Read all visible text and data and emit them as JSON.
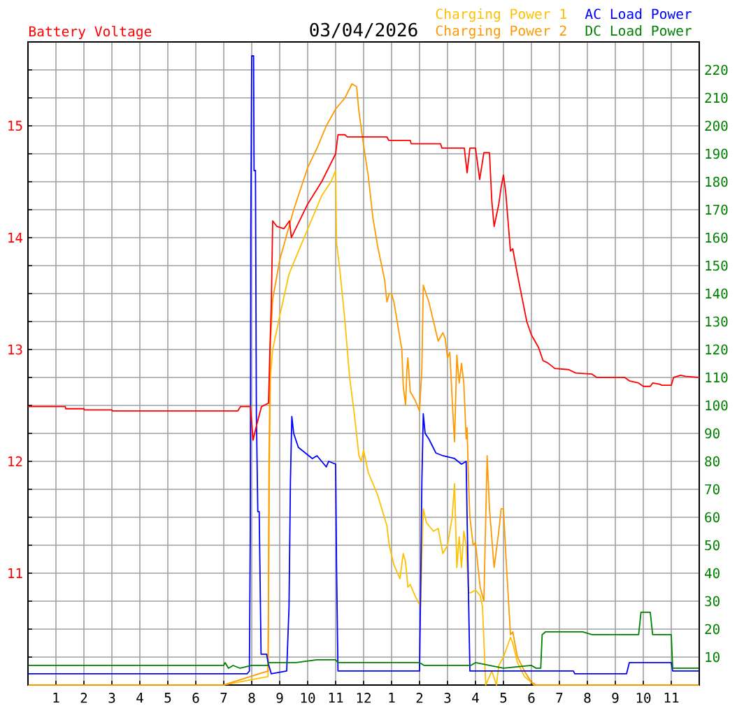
{
  "chart_data": {
    "type": "line",
    "title": "03/04/2026",
    "ylabel": "Battery Voltage",
    "xlim": [
      "2026-03-04T00:00",
      "2026-03-05T00:00"
    ],
    "xticks": [
      {
        "value": "2026-03-04T01:00",
        "label": "1"
      },
      {
        "value": "2026-03-04T02:00",
        "label": "2"
      },
      {
        "value": "2026-03-04T03:00",
        "label": "3"
      },
      {
        "value": "2026-03-04T04:00",
        "label": "4"
      },
      {
        "value": "2026-03-04T05:00",
        "label": "5"
      },
      {
        "value": "2026-03-04T06:00",
        "label": "6"
      },
      {
        "value": "2026-03-04T07:00",
        "label": "7"
      },
      {
        "value": "2026-03-04T08:00",
        "label": "8"
      },
      {
        "value": "2026-03-04T09:00",
        "label": "9"
      },
      {
        "value": "2026-03-04T10:00",
        "label": "10"
      },
      {
        "value": "2026-03-04T11:00",
        "label": "11"
      },
      {
        "value": "2026-03-04T12:00",
        "label": "12"
      },
      {
        "value": "2026-03-04T13:00",
        "label": "1"
      },
      {
        "value": "2026-03-04T14:00",
        "label": "2"
      },
      {
        "value": "2026-03-04T15:00",
        "label": "3"
      },
      {
        "value": "2026-03-04T16:00",
        "label": "4"
      },
      {
        "value": "2026-03-04T17:00",
        "label": "5"
      },
      {
        "value": "2026-03-04T18:00",
        "label": "6"
      },
      {
        "value": "2026-03-04T19:00",
        "label": "7"
      },
      {
        "value": "2026-03-04T20:00",
        "label": "8"
      },
      {
        "value": "2026-03-04T21:00",
        "label": "9"
      },
      {
        "value": "2026-03-04T22:00",
        "label": "10"
      },
      {
        "value": "2026-03-04T23:00",
        "label": "11"
      }
    ],
    "ylim": [
      10,
      15.75
    ],
    "yticks": [
      {
        "value": 10.25,
        "label": null
      },
      {
        "value": 10.5,
        "label": null
      },
      {
        "value": 10.75,
        "label": null
      },
      11,
      {
        "value": 11.25,
        "label": null
      },
      {
        "value": 11.5,
        "label": null
      },
      {
        "value": 11.75,
        "label": null
      },
      12,
      {
        "value": 12.25,
        "label": null
      },
      {
        "value": 12.5,
        "label": null
      },
      {
        "value": 12.75,
        "label": null
      },
      13,
      {
        "value": 13.25,
        "label": null
      },
      {
        "value": 13.5,
        "label": null
      },
      {
        "value": 13.75,
        "label": null
      },
      14,
      {
        "value": 14.25,
        "label": null
      },
      {
        "value": 14.5,
        "label": null
      },
      {
        "value": 14.75,
        "label": null
      },
      15,
      {
        "value": 15.25,
        "label": null
      },
      {
        "value": 15.5,
        "label": null
      }
    ],
    "y2lim": [
      0,
      230
    ],
    "y2ticks": [
      10,
      20,
      30,
      40,
      50,
      60,
      70,
      80,
      90,
      100,
      110,
      120,
      130,
      140,
      150,
      160,
      170,
      180,
      190,
      200,
      210,
      220
    ],
    "grid": true,
    "legend": "top right",
    "series": [
      {
        "color": "#ff0000",
        "x": [
          "2026-03-04T00:00",
          "2026-03-04T01:20",
          "2026-03-04T01:21",
          "2026-03-04T02:00",
          "2026-03-04T02:01",
          "2026-03-04T03:00",
          "2026-03-04T03:01",
          "2026-03-04T07:30",
          "2026-03-04T07:36",
          "2026-03-04T07:57",
          "2026-03-04T08:03",
          "2026-03-04T08:09",
          "2026-03-04T08:21",
          "2026-03-04T08:36",
          "2026-03-04T08:39",
          "2026-03-04T08:42",
          "2026-03-04T08:45",
          "2026-03-04T08:54",
          "2026-03-04T09:09",
          "2026-03-04T09:21",
          "2026-03-04T09:25",
          "2026-03-04T10:00",
          "2026-03-04T10:30",
          "2026-03-04T11:00",
          "2026-03-04T11:05",
          "2026-03-04T11:20",
          "2026-03-04T11:25",
          "2026-03-04T12:50",
          "2026-03-04T12:54",
          "2026-03-04T13:40",
          "2026-03-04T13:42",
          "2026-03-04T14:45",
          "2026-03-04T14:48",
          "2026-03-04T15:36",
          "2026-03-04T15:42",
          "2026-03-04T15:48",
          "2026-03-04T16:00",
          "2026-03-04T16:09",
          "2026-03-04T16:18",
          "2026-03-04T16:30",
          "2026-03-04T16:35",
          "2026-03-04T16:40",
          "2026-03-04T16:50",
          "2026-03-04T16:55",
          "2026-03-04T17:00",
          "2026-03-04T17:05",
          "2026-03-04T17:15",
          "2026-03-04T17:20",
          "2026-03-04T17:30",
          "2026-03-04T17:40",
          "2026-03-04T17:50",
          "2026-03-04T18:00",
          "2026-03-04T18:15",
          "2026-03-04T18:25",
          "2026-03-04T18:35",
          "2026-03-04T18:50",
          "2026-03-04T19:20",
          "2026-03-04T19:35",
          "2026-03-04T20:10",
          "2026-03-04T20:20",
          "2026-03-04T21:20",
          "2026-03-04T21:30",
          "2026-03-04T21:50",
          "2026-03-04T22:00",
          "2026-03-04T22:15",
          "2026-03-04T22:20",
          "2026-03-04T22:35",
          "2026-03-04T22:40",
          "2026-03-04T23:00",
          "2026-03-04T23:05",
          "2026-03-04T23:20",
          "2026-03-04T23:30",
          "2026-03-05T00:00"
        ],
        "values": [
          12.49,
          12.49,
          12.47,
          12.47,
          12.46,
          12.46,
          12.45,
          12.45,
          12.49,
          12.49,
          12.19,
          12.3,
          12.49,
          12.52,
          13.0,
          13.4,
          14.15,
          14.1,
          14.08,
          14.15,
          14.0,
          14.3,
          14.5,
          14.75,
          14.92,
          14.92,
          14.9,
          14.9,
          14.87,
          14.87,
          14.84,
          14.84,
          14.8,
          14.8,
          14.58,
          14.8,
          14.8,
          14.52,
          14.76,
          14.76,
          14.33,
          14.1,
          14.3,
          14.45,
          14.56,
          14.4,
          13.88,
          13.9,
          13.67,
          13.46,
          13.25,
          13.13,
          13.02,
          12.9,
          12.88,
          12.83,
          12.82,
          12.79,
          12.78,
          12.75,
          12.75,
          12.72,
          12.7,
          12.67,
          12.67,
          12.7,
          12.69,
          12.68,
          12.68,
          12.75,
          12.77,
          12.76,
          12.75
        ]
      },
      {
        "name": "Charging Power 1",
        "color": "#ffc000",
        "axis": "y2",
        "x": [
          "2026-03-04T00:00",
          "2026-03-04T07:00",
          "2026-03-04T08:35",
          "2026-03-04T08:36",
          "2026-03-04T08:38",
          "2026-03-04T08:40",
          "2026-03-04T08:45",
          "2026-03-04T09:00",
          "2026-03-04T09:20",
          "2026-03-04T09:40",
          "2026-03-04T10:00",
          "2026-03-04T10:30",
          "2026-03-04T10:50",
          "2026-03-04T11:00",
          "2026-03-04T11:02",
          "2026-03-04T11:10",
          "2026-03-04T11:20",
          "2026-03-04T11:30",
          "2026-03-04T11:40",
          "2026-03-04T11:50",
          "2026-03-04T11:55",
          "2026-03-04T12:00",
          "2026-03-04T12:10",
          "2026-03-04T12:20",
          "2026-03-04T12:30",
          "2026-03-04T12:50",
          "2026-03-04T12:55",
          "2026-03-04T13:05",
          "2026-03-04T13:18",
          "2026-03-04T13:25",
          "2026-03-04T13:30",
          "2026-03-04T13:35",
          "2026-03-04T13:40",
          "2026-03-04T13:50",
          "2026-03-04T14:02",
          "2026-03-04T14:05",
          "2026-03-04T14:08",
          "2026-03-04T14:15",
          "2026-03-04T14:30",
          "2026-03-04T14:40",
          "2026-03-04T14:50",
          "2026-03-04T15:00",
          "2026-03-04T15:10",
          "2026-03-04T15:15",
          "2026-03-04T15:20",
          "2026-03-04T15:25",
          "2026-03-04T15:30",
          "2026-03-04T15:35",
          "2026-03-04T15:40",
          "2026-03-04T15:45",
          "2026-03-04T15:50",
          "2026-03-04T16:00",
          "2026-03-04T16:10",
          "2026-03-04T16:15",
          "2026-03-04T16:22",
          "2026-03-04T16:35",
          "2026-03-04T16:45",
          "2026-03-04T16:50",
          "2026-03-04T17:00",
          "2026-03-04T17:15",
          "2026-03-04T17:20",
          "2026-03-04T17:30",
          "2026-03-04T17:45",
          "2026-03-04T18:00",
          "2026-03-04T18:05",
          "2026-03-05T00:00"
        ],
        "values": [
          0,
          0,
          3,
          28,
          79,
          110,
          120,
          132,
          147,
          155,
          163,
          175,
          180,
          184,
          158,
          147,
          130,
          110,
          97,
          82,
          80,
          84,
          76,
          72,
          68,
          57,
          50,
          43,
          38,
          47,
          44,
          35,
          36,
          32,
          28,
          45,
          63,
          58,
          55,
          56,
          47,
          50,
          60,
          72,
          42,
          53,
          42,
          55,
          50,
          33,
          33,
          34,
          32,
          28,
          0,
          5,
          0,
          7,
          10,
          17,
          15,
          8,
          3,
          1,
          0,
          0
        ]
      },
      {
        "name": "Charging Power 2",
        "color": "#ff9900",
        "axis": "y2",
        "x": [
          "2026-03-04T00:00",
          "2026-03-04T07:00",
          "2026-03-04T08:35",
          "2026-03-04T08:36",
          "2026-03-04T08:37",
          "2026-03-04T08:40",
          "2026-03-04T08:45",
          "2026-03-04T09:00",
          "2026-03-04T09:20",
          "2026-03-04T09:30",
          "2026-03-04T09:40",
          "2026-03-04T10:00",
          "2026-03-04T10:20",
          "2026-03-04T10:40",
          "2026-03-04T11:00",
          "2026-03-04T11:20",
          "2026-03-04T11:35",
          "2026-03-04T11:45",
          "2026-03-04T11:50",
          "2026-03-04T12:00",
          "2026-03-04T12:10",
          "2026-03-04T12:20",
          "2026-03-04T12:30",
          "2026-03-04T12:45",
          "2026-03-04T12:50",
          "2026-03-04T12:55",
          "2026-03-04T13:00",
          "2026-03-04T13:05",
          "2026-03-04T13:15",
          "2026-03-04T13:22",
          "2026-03-04T13:25",
          "2026-03-04T13:30",
          "2026-03-04T13:33",
          "2026-03-04T13:35",
          "2026-03-04T13:40",
          "2026-03-04T13:50",
          "2026-03-04T14:00",
          "2026-03-04T14:05",
          "2026-03-04T14:08",
          "2026-03-04T14:10",
          "2026-03-04T14:20",
          "2026-03-04T14:30",
          "2026-03-04T14:40",
          "2026-03-04T14:50",
          "2026-03-04T14:55",
          "2026-03-04T15:00",
          "2026-03-04T15:05",
          "2026-03-04T15:10",
          "2026-03-04T15:15",
          "2026-03-04T15:20",
          "2026-03-04T15:25",
          "2026-03-04T15:30",
          "2026-03-04T15:35",
          "2026-03-04T15:40",
          "2026-03-04T15:42",
          "2026-03-04T15:45",
          "2026-03-04T15:48",
          "2026-03-04T15:55",
          "2026-03-04T16:00",
          "2026-03-04T16:10",
          "2026-03-04T16:18",
          "2026-03-04T16:25",
          "2026-03-04T16:30",
          "2026-03-04T16:40",
          "2026-03-04T16:50",
          "2026-03-04T16:55",
          "2026-03-04T17:00",
          "2026-03-04T17:05",
          "2026-03-04T17:15",
          "2026-03-04T17:20",
          "2026-03-04T17:30",
          "2026-03-04T17:45",
          "2026-03-04T18:00",
          "2026-03-04T18:10",
          "2026-03-05T00:00"
        ],
        "values": [
          0,
          0,
          5,
          33,
          79,
          122,
          138,
          152,
          164,
          170,
          175,
          185,
          192,
          200,
          206,
          210,
          215,
          214,
          205,
          193,
          182,
          167,
          157,
          145,
          137,
          140,
          140,
          137,
          127,
          120,
          107,
          100,
          113,
          117,
          105,
          102,
          98,
          113,
          143,
          142,
          137,
          130,
          123,
          126,
          124,
          117,
          119,
          102,
          87,
          118,
          108,
          115,
          108,
          88,
          92,
          73,
          60,
          50,
          51,
          35,
          30,
          82,
          63,
          42,
          55,
          63,
          63,
          47,
          18,
          19,
          10,
          5,
          1,
          0,
          0
        ]
      },
      {
        "name": "AC Load Power",
        "color": "#0000ff",
        "axis": "y2",
        "x": [
          "2026-03-04T00:00",
          "2026-03-04T07:50",
          "2026-03-04T07:55",
          "2026-03-04T07:57",
          "2026-03-04T07:58",
          "2026-03-04T08:00",
          "2026-03-04T08:04",
          "2026-03-04T08:05",
          "2026-03-04T08:08",
          "2026-03-04T08:10",
          "2026-03-04T08:13",
          "2026-03-04T08:16",
          "2026-03-04T08:18",
          "2026-03-04T08:20",
          "2026-03-04T08:32",
          "2026-03-04T08:35",
          "2026-03-04T08:42",
          "2026-03-04T09:15",
          "2026-03-04T09:20",
          "2026-03-04T09:23",
          "2026-03-04T09:26",
          "2026-03-04T09:30",
          "2026-03-04T09:40",
          "2026-03-04T09:55",
          "2026-03-04T10:10",
          "2026-03-04T10:20",
          "2026-03-04T10:30",
          "2026-03-04T10:40",
          "2026-03-04T10:45",
          "2026-03-04T11:00",
          "2026-03-04T11:02",
          "2026-03-04T11:05",
          "2026-03-04T14:00",
          "2026-03-04T14:02",
          "2026-03-04T14:05",
          "2026-03-04T14:08",
          "2026-03-04T14:12",
          "2026-03-04T14:20",
          "2026-03-04T14:35",
          "2026-03-04T14:50",
          "2026-03-04T15:15",
          "2026-03-04T15:30",
          "2026-03-04T15:40",
          "2026-03-04T15:42",
          "2026-03-04T15:46",
          "2026-03-04T15:48",
          "2026-03-04T19:30",
          "2026-03-04T19:33",
          "2026-03-04T21:24",
          "2026-03-04T21:30",
          "2026-03-04T23:00",
          "2026-03-04T23:03",
          "2026-03-05T00:00"
        ],
        "values": [
          4,
          4,
          5,
          57,
          163,
          225,
          225,
          184,
          184,
          97,
          62,
          62,
          37,
          11,
          11,
          8,
          4,
          5,
          28,
          73,
          96,
          90,
          85,
          83,
          81,
          82,
          80,
          78,
          80,
          79,
          42,
          5,
          5,
          30,
          73,
          97,
          90,
          88,
          83,
          82,
          81,
          79,
          80,
          60,
          23,
          5,
          5,
          4,
          4,
          8,
          8,
          5,
          5
        ]
      },
      {
        "name": "DC Load Power",
        "color": "#008000",
        "axis": "y2",
        "x": [
          "2026-03-04T00:00",
          "2026-03-04T07:00",
          "2026-03-04T07:03",
          "2026-03-04T07:10",
          "2026-03-04T07:20",
          "2026-03-04T07:35",
          "2026-03-04T08:00",
          "2026-03-04T08:35",
          "2026-03-04T08:36",
          "2026-03-04T09:35",
          "2026-03-04T10:20",
          "2026-03-04T11:00",
          "2026-03-04T11:05",
          "2026-03-04T14:00",
          "2026-03-04T14:10",
          "2026-03-04T15:50",
          "2026-03-04T16:00",
          "2026-03-04T17:00",
          "2026-03-04T18:00",
          "2026-03-04T18:10",
          "2026-03-04T18:20",
          "2026-03-04T18:23",
          "2026-03-04T18:30",
          "2026-03-04T19:50",
          "2026-03-04T20:10",
          "2026-03-04T21:50",
          "2026-03-04T21:55",
          "2026-03-04T22:15",
          "2026-03-04T22:20",
          "2026-03-04T23:00",
          "2026-03-04T23:03",
          "2026-03-05T00:00"
        ],
        "values": [
          7,
          7,
          8,
          6,
          7,
          6,
          7,
          7,
          8,
          8,
          9,
          9,
          8,
          8,
          7,
          7,
          8,
          6,
          7,
          6,
          6,
          18,
          19,
          19,
          18,
          18,
          26,
          26,
          18,
          18,
          6,
          6
        ]
      }
    ]
  }
}
